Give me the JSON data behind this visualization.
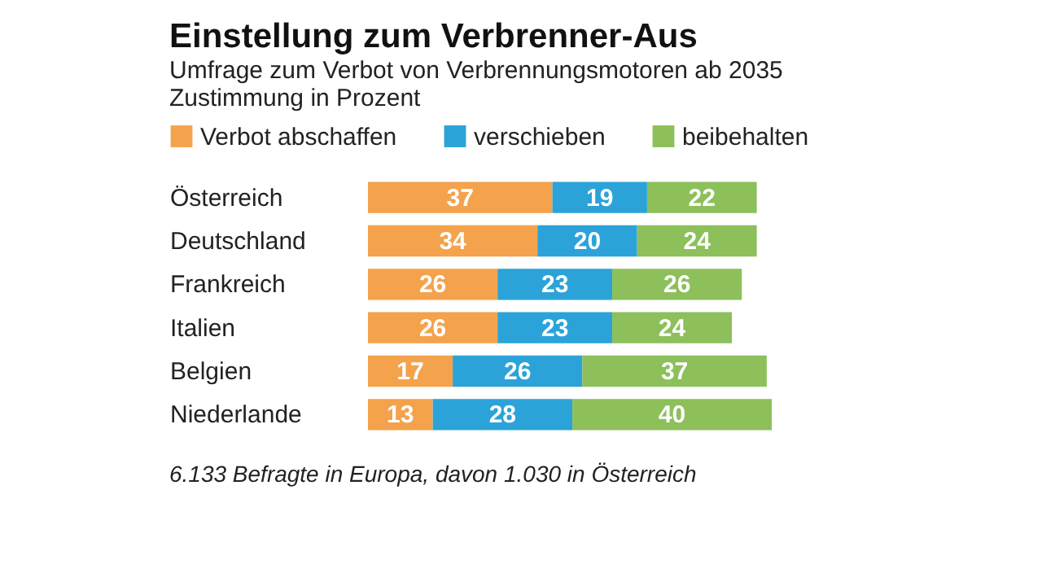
{
  "chart_data": {
    "type": "bar",
    "orientation": "horizontal",
    "stacked": true,
    "data_labels": true,
    "legend": "top",
    "title": "Einstellung zum Verbrenner-Aus",
    "subtitle": "Umfrage zum Verbot von Verbrennungsmotoren ab 2035\nZustimmung in Prozent",
    "categories": [
      "Österreich",
      "Deutschland",
      "Frankreich",
      "Italien",
      "Belgien",
      "Niederlande"
    ],
    "series": [
      {
        "name": "Verbot abschaffen",
        "color": "#f4a24c",
        "values": [
          37,
          34,
          26,
          26,
          17,
          13
        ]
      },
      {
        "name": "verschieben",
        "color": "#2ba3d9",
        "values": [
          19,
          20,
          23,
          23,
          26,
          28
        ]
      },
      {
        "name": "beibehalten",
        "color": "#8dbf5b",
        "values": [
          22,
          24,
          26,
          24,
          37,
          40
        ]
      }
    ],
    "annotations": [
      "6.133 Befragte in Europa, davon 1.030 in Österreich"
    ]
  }
}
